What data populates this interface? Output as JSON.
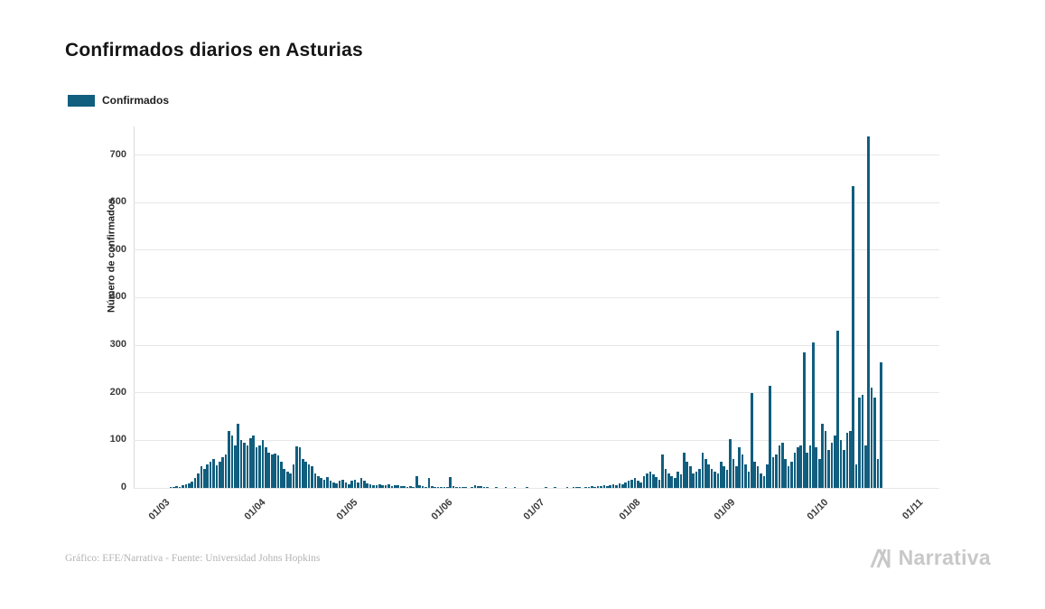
{
  "title": "Confirmados diarios en Asturias",
  "legend": {
    "label": "Confirmados"
  },
  "footer": {
    "credit": "Gráfico: EFE/Narrativa - Fuente: Universidad Johns Hopkins"
  },
  "logo": {
    "text": "Narrativa"
  },
  "colors": {
    "bar": "#115e7e",
    "grid": "#e7e7e7",
    "axis_text": "#3a3a3a",
    "footer_text": "#b3b3b3",
    "logo_text": "#c8c8c8"
  },
  "chart_data": {
    "type": "bar",
    "title": "Confirmados diarios en Asturias",
    "series_name": "Confirmados",
    "xlabel": "",
    "ylabel": "Número de confirmados",
    "ylim": [
      0,
      760
    ],
    "yticks": [
      0,
      100,
      200,
      300,
      400,
      500,
      600,
      700
    ],
    "grid": true,
    "legend_position": "top-left",
    "start_date": "2020-03-01",
    "axis_days": [
      -10,
      252
    ],
    "xticks": [
      {
        "label": "01/03",
        "day": 0
      },
      {
        "label": "01/04",
        "day": 31
      },
      {
        "label": "01/05",
        "day": 61
      },
      {
        "label": "01/06",
        "day": 92
      },
      {
        "label": "01/07",
        "day": 122
      },
      {
        "label": "01/08",
        "day": 153
      },
      {
        "label": "01/09",
        "day": 184
      },
      {
        "label": "01/10",
        "day": 214
      },
      {
        "label": "01/11",
        "day": 245
      }
    ],
    "values": [
      0,
      0,
      1,
      2,
      3,
      2,
      5,
      8,
      10,
      14,
      20,
      30,
      45,
      40,
      50,
      55,
      60,
      48,
      55,
      65,
      70,
      120,
      110,
      90,
      135,
      100,
      95,
      90,
      105,
      110,
      85,
      90,
      100,
      85,
      75,
      70,
      72,
      68,
      55,
      40,
      35,
      30,
      50,
      88,
      85,
      60,
      55,
      50,
      45,
      30,
      25,
      20,
      18,
      22,
      15,
      12,
      10,
      15,
      18,
      12,
      8,
      15,
      18,
      12,
      20,
      15,
      10,
      8,
      6,
      5,
      8,
      6,
      5,
      8,
      4,
      6,
      5,
      3,
      4,
      2,
      3,
      2,
      25,
      5,
      3,
      2,
      20,
      3,
      2,
      1,
      2,
      1,
      2,
      22,
      3,
      2,
      1,
      2,
      1,
      0,
      1,
      5,
      4,
      3,
      2,
      1,
      0,
      0,
      1,
      0,
      0,
      1,
      0,
      0,
      1,
      0,
      0,
      0,
      1,
      0,
      0,
      0,
      0,
      0,
      1,
      0,
      0,
      1,
      0,
      0,
      0,
      1,
      0,
      1,
      2,
      1,
      0,
      1,
      2,
      3,
      2,
      4,
      3,
      5,
      4,
      6,
      8,
      5,
      10,
      8,
      12,
      15,
      18,
      20,
      15,
      12,
      25,
      30,
      35,
      28,
      22,
      18,
      70,
      40,
      30,
      25,
      20,
      35,
      28,
      75,
      55,
      45,
      30,
      35,
      40,
      75,
      60,
      50,
      40,
      35,
      30,
      55,
      45,
      38,
      102,
      60,
      45,
      85,
      70,
      50,
      35,
      200,
      55,
      45,
      30,
      25,
      50,
      215,
      65,
      70,
      90,
      95,
      60,
      45,
      55,
      75,
      85,
      90,
      285,
      75,
      90,
      305,
      85,
      60,
      135,
      120,
      80,
      95,
      110,
      330,
      100,
      80,
      115,
      120,
      635,
      50,
      190,
      195,
      90,
      740,
      210,
      190,
      60,
      265
    ]
  }
}
